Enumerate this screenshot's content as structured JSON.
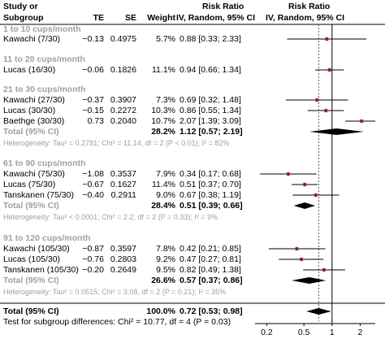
{
  "header": {
    "study_line1": "Study or",
    "study_line2": "Subgroup",
    "te": "TE",
    "se": "SE",
    "weight": "Weight",
    "ci": "IV, Random, 95% CI",
    "rr_line1": "Risk Ratio",
    "rr_line2": "Risk Ratio",
    "rr_col": "IV, Random, 95% CI"
  },
  "groups": [
    {
      "title": "1 to 10 cups/month",
      "studies": [
        {
          "name": "Kawachi (7/30)",
          "te": "−0.13",
          "se": "0.4975",
          "weight": "5.7%",
          "ci": "0.88 [0.33; 2.33]"
        }
      ]
    },
    {
      "title": "11 to 20 cups/month",
      "studies": [
        {
          "name": "Lucas (16/30)",
          "te": "−0.06",
          "se": "0.1826",
          "weight": "11.1%",
          "ci": "0.94 [0.66; 1.34]"
        }
      ]
    },
    {
      "title": "21 to 30 cups/month",
      "studies": [
        {
          "name": "Kawachi (27/30)",
          "te": "−0.37",
          "se": "0.3907",
          "weight": "7.3%",
          "ci": "0.69 [0.32; 1.48]"
        },
        {
          "name": "Lucas (30/30)",
          "te": "−0.15",
          "se": "0.2272",
          "weight": "10.3%",
          "ci": "0.86 [0.55; 1.34]"
        },
        {
          "name": "Baethge (30/30)",
          "te": "0.73",
          "se": "0.2040",
          "weight": "10.7%",
          "ci": "2.07 [1.39; 3.09]"
        }
      ],
      "total": {
        "label": "Total (95% CI)",
        "weight": "28.2%",
        "ci": "1.12 [0.57; 2.19]"
      },
      "het": "Heterogeneity: Tau² = 0.2781; Chi² = 11.14, df = 2 (P < 0.01); I² = 82%"
    },
    {
      "title": "61 to 90 cups/month",
      "studies": [
        {
          "name": "Kawachi (75/30)",
          "te": "−1.08",
          "se": "0.3537",
          "weight": "7.9%",
          "ci": "0.34 [0.17; 0.68]"
        },
        {
          "name": "Lucas (75/30)",
          "te": "−0.67",
          "se": "0.1627",
          "weight": "11.4%",
          "ci": "0.51 [0.37; 0.70]"
        },
        {
          "name": "Tanskanen (75/30)",
          "te": "−0.40",
          "se": "0.2911",
          "weight": "9.0%",
          "ci": "0.67 [0.38; 1.19]"
        }
      ],
      "total": {
        "label": "Total (95% CI)",
        "weight": "28.4%",
        "ci": "0.51 [0.39; 0.66]"
      },
      "het": "Heterogeneity: Tau² < 0.0001; Chi² = 2.2, df = 2 (P = 0.33); I² = 9%"
    },
    {
      "title": "91 to 120 cups/month",
      "studies": [
        {
          "name": "Kawachi (105/30)",
          "te": "−0.87",
          "se": "0.3597",
          "weight": "7.8%",
          "ci": "0.42 [0.21; 0.85]"
        },
        {
          "name": "Lucas (105/30)",
          "te": "−0.76",
          "se": "0.2803",
          "weight": "9.2%",
          "ci": "0.47 [0.27; 0.81]"
        },
        {
          "name": "Tanskanen (105/30)",
          "te": "−0.20",
          "se": "0.2649",
          "weight": "9.5%",
          "ci": "0.82 [0.49; 1.38]"
        }
      ],
      "total": {
        "label": "Total (95% CI)",
        "weight": "26.6%",
        "ci": "0.57 [0.37; 0.86]"
      },
      "het": "Heterogeneity: Tau² = 0.0515; Chi² = 3.08, df = 2 (P = 0.21); I² = 35%"
    }
  ],
  "overall": {
    "label": "Total (95% CI)",
    "weight": "100.0%",
    "ci": "0.72 [0.53; 0.98]"
  },
  "subgroup_test": "Test for subgroup differences: Chi² = 10.77, df = 4 (P = 0.03)",
  "chart_data": {
    "type": "forest",
    "x_scale": "log",
    "xlim": [
      0.15,
      2.9
    ],
    "x_ticks": [
      "0.2",
      "0.5",
      "1",
      "2"
    ],
    "reference_line": 1,
    "overall_line": 0.72,
    "colors": {
      "point": "#8b1a1a",
      "diamond": "#000000",
      "ci_line": "#000000"
    },
    "studies": [
      {
        "label": "Kawachi (7/30)",
        "rr": 0.88,
        "lower": 0.33,
        "upper": 2.33
      },
      {
        "label": "Lucas (16/30)",
        "rr": 0.94,
        "lower": 0.66,
        "upper": 1.34
      },
      {
        "label": "Kawachi (27/30)",
        "rr": 0.69,
        "lower": 0.32,
        "upper": 1.48
      },
      {
        "label": "Lucas (30/30)",
        "rr": 0.86,
        "lower": 0.55,
        "upper": 1.34
      },
      {
        "label": "Baethge (30/30)",
        "rr": 2.07,
        "lower": 1.39,
        "upper": 3.09
      },
      {
        "label": "Kawachi (75/30)",
        "rr": 0.34,
        "lower": 0.17,
        "upper": 0.68
      },
      {
        "label": "Lucas (75/30)",
        "rr": 0.51,
        "lower": 0.37,
        "upper": 0.7
      },
      {
        "label": "Tanskanen (75/30)",
        "rr": 0.67,
        "lower": 0.38,
        "upper": 1.19
      },
      {
        "label": "Kawachi (105/30)",
        "rr": 0.42,
        "lower": 0.21,
        "upper": 0.85
      },
      {
        "label": "Lucas (105/30)",
        "rr": 0.47,
        "lower": 0.27,
        "upper": 0.81
      },
      {
        "label": "Tanskanen (105/30)",
        "rr": 0.82,
        "lower": 0.49,
        "upper": 1.38
      }
    ],
    "pooled": [
      {
        "label": "21 to 30 cups/month",
        "rr": 1.12,
        "lower": 0.57,
        "upper": 2.19
      },
      {
        "label": "61 to 90 cups/month",
        "rr": 0.51,
        "lower": 0.39,
        "upper": 0.66
      },
      {
        "label": "91 to 120 cups/month",
        "rr": 0.57,
        "lower": 0.37,
        "upper": 0.86
      },
      {
        "label": "Overall",
        "rr": 0.72,
        "lower": 0.53,
        "upper": 0.98
      }
    ]
  }
}
